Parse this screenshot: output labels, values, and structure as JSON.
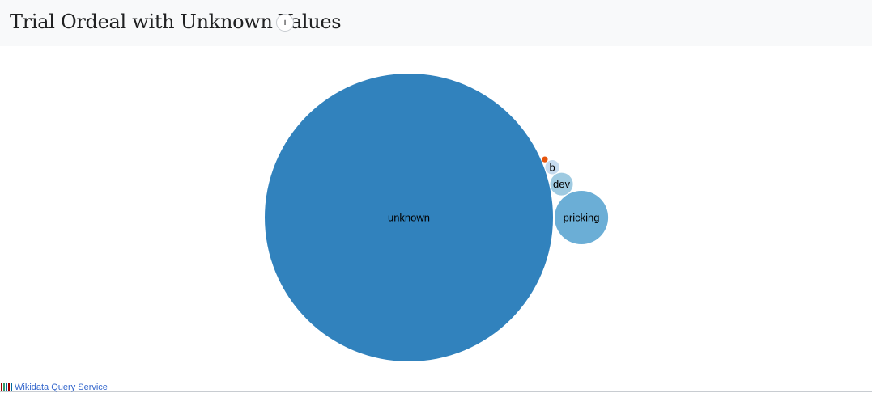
{
  "header": {
    "title": "Trial Ordeal with Unknown Values",
    "info_label": "i"
  },
  "footer": {
    "link_label": "Wikidata Query Service",
    "logo_colors": [
      "#990000",
      "#339966",
      "#006699"
    ]
  },
  "chart_data": {
    "type": "bubble",
    "title": "",
    "bubbles": [
      {
        "label": "unknown",
        "value": 29,
        "color": "#3182bd"
      },
      {
        "label": "pricking",
        "value": 1,
        "color": "#6baed6"
      },
      {
        "label": "dev",
        "value": 0.18,
        "color": "#9ecae1"
      },
      {
        "label": "b",
        "value": 0.07,
        "color": "#c6dbef"
      },
      {
        "label": "",
        "value": 0.012,
        "color": "#e6550d"
      }
    ]
  }
}
